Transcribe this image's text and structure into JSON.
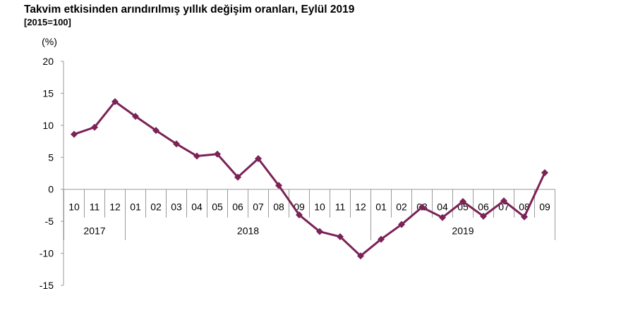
{
  "chart_data": {
    "type": "line",
    "title": "Takvim etkisinden arındırılmış yıllık değişim oranları, Eylül 2019",
    "subtitle": "[2015=100]",
    "ylabel": "(%)",
    "xlabel": "",
    "ylim": [
      -15,
      20
    ],
    "yticks": [
      20,
      15,
      10,
      5,
      0,
      -5,
      -10,
      -15
    ],
    "grid": false,
    "line_color": "#7b2257",
    "categories": [
      "10",
      "11",
      "12",
      "01",
      "02",
      "03",
      "04",
      "05",
      "06",
      "07",
      "08",
      "09",
      "10",
      "11",
      "12",
      "01",
      "02",
      "03",
      "04",
      "05",
      "06",
      "07",
      "08",
      "09"
    ],
    "years": [
      {
        "label": "2017",
        "start": 0,
        "end": 2
      },
      {
        "label": "2018",
        "start": 3,
        "end": 14
      },
      {
        "label": "2019",
        "start": 15,
        "end": 23
      }
    ],
    "series": [
      {
        "values": [
          8.6,
          9.7,
          13.7,
          11.4,
          9.2,
          7.1,
          5.2,
          5.5,
          1.9,
          4.8,
          0.6,
          -4.0,
          -6.6,
          -7.4,
          -10.4,
          -7.8,
          -5.5,
          -2.8,
          -4.4,
          -1.9,
          -4.2,
          -1.8,
          -4.3,
          2.6
        ]
      }
    ]
  }
}
